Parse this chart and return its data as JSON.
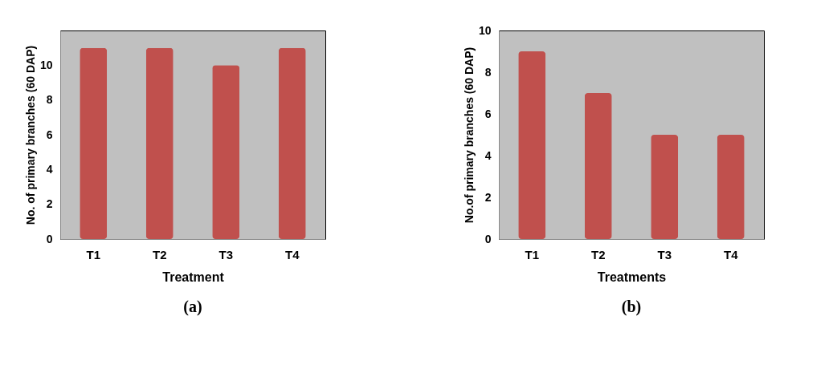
{
  "chart_data": [
    {
      "type": "bar",
      "categories": [
        "T1",
        "T2",
        "T3",
        "T4"
      ],
      "values": [
        11,
        11,
        10,
        11
      ],
      "color": "#c0504d",
      "xlabel": "Treatment",
      "ylabel": "No. of primary branches (60 DAP)",
      "ylim": [
        0,
        12
      ],
      "yticks": [
        0,
        2,
        4,
        6,
        8,
        10
      ],
      "grid": false,
      "annotations": [
        "(a)"
      ]
    },
    {
      "type": "bar",
      "categories": [
        "T1",
        "T2",
        "T3",
        "T4"
      ],
      "values": [
        9,
        7,
        5,
        5
      ],
      "color": "#c0504d",
      "xlabel": "Treatments",
      "ylabel": "No.of primary branches (60 DAP)",
      "ylim": [
        0,
        10
      ],
      "yticks": [
        0,
        2,
        4,
        6,
        8,
        10
      ],
      "grid": false,
      "annotations": [
        "(b)"
      ]
    }
  ]
}
